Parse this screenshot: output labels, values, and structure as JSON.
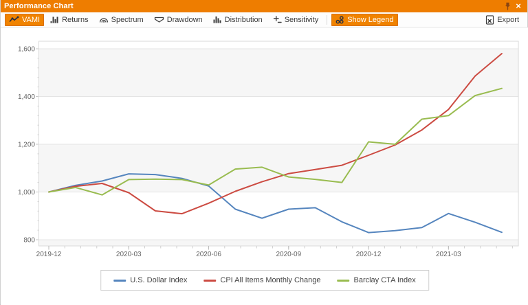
{
  "window": {
    "title": "Performance Chart",
    "pin_icon": "pin-icon",
    "close_icon": "×"
  },
  "toolbar": {
    "items": [
      {
        "label": "VAMI",
        "icon": "line-chart-icon",
        "active": true
      },
      {
        "label": "Returns",
        "icon": "bar-chart-icon",
        "active": false
      },
      {
        "label": "Spectrum",
        "icon": "spectrum-arcs-icon",
        "active": false
      },
      {
        "label": "Drawdown",
        "icon": "banner-icon",
        "active": false
      },
      {
        "label": "Distribution",
        "icon": "histogram-icon",
        "active": false
      },
      {
        "label": "Sensitivity",
        "icon": "plus-minus-icon",
        "active": false
      },
      {
        "label": "Show Legend",
        "icon": "bubbles-icon",
        "active": true
      }
    ],
    "export_label": "Export"
  },
  "chart_data": {
    "type": "line",
    "title": "",
    "xlabel": "",
    "ylabel": "",
    "grid": true,
    "plot_bands": "alternating-horizontal-gray",
    "legend_position": "bottom",
    "ylim": [
      775,
      1630
    ],
    "y_tick_values": [
      1600,
      1400,
      1200,
      1000,
      800
    ],
    "y_tick_labels": [
      "1,600",
      "1,400",
      "1,200",
      "1,000",
      "800"
    ],
    "x": [
      "2019-12",
      "2020-01",
      "2020-02",
      "2020-03",
      "2020-04",
      "2020-05",
      "2020-06",
      "2020-07",
      "2020-08",
      "2020-09",
      "2020-10",
      "2020-11",
      "2020-12",
      "2021-01",
      "2021-02",
      "2021-03",
      "2021-04",
      "2021-05"
    ],
    "x_tick_label_indices": [
      0,
      3,
      6,
      9,
      12,
      15
    ],
    "x_tick_labels": [
      "2019-12",
      "2020-03",
      "2020-06",
      "2020-09",
      "2020-12",
      "2021-03"
    ],
    "series": [
      {
        "name": "U.S. Dollar Index",
        "color": "#5585BE",
        "values": [
          1000,
          1028,
          1046,
          1076,
          1073,
          1057,
          1025,
          928,
          890,
          928,
          934,
          875,
          830,
          838,
          851,
          910,
          873,
          831
        ]
      },
      {
        "name": "CPI All Items Monthly Change",
        "color": "#CC4B42",
        "values": [
          1000,
          1024,
          1036,
          997,
          921,
          909,
          953,
          1003,
          1043,
          1077,
          1094,
          1112,
          1154,
          1197,
          1260,
          1346,
          1486,
          1580
        ]
      },
      {
        "name": "Barclay CTA Index",
        "color": "#99BC50",
        "values": [
          1000,
          1019,
          988,
          1052,
          1054,
          1052,
          1029,
          1096,
          1104,
          1063,
          1053,
          1040,
          1210,
          1200,
          1305,
          1320,
          1404,
          1434
        ]
      }
    ]
  }
}
